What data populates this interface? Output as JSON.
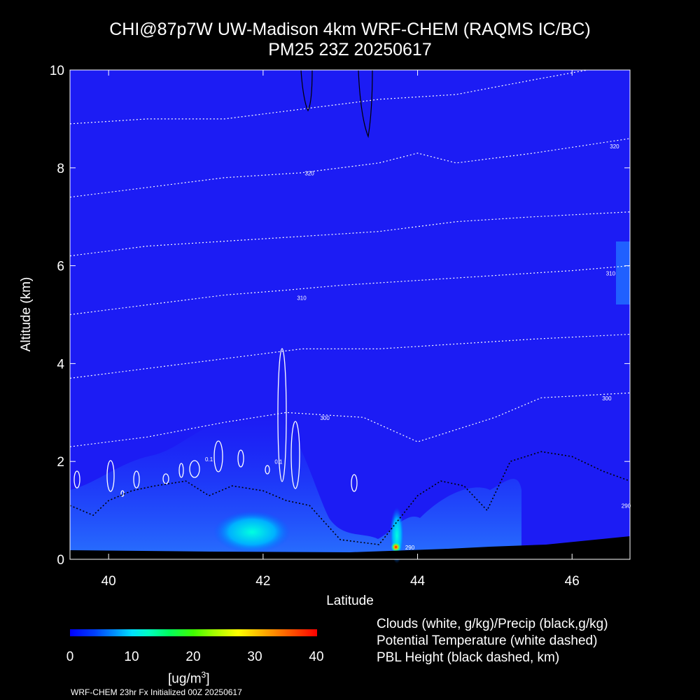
{
  "chart_data": {
    "type": "heatmap",
    "title": "CHI@87p7W UW-Madison 4km WRF-CHEM (RAQMS IC/BC)",
    "subtitle": "PM25 23Z 20250617",
    "xlabel": "Latitude",
    "ylabel": "Altitude (km)",
    "xlim": [
      39.5,
      46.75
    ],
    "ylim": [
      0,
      10
    ],
    "x_ticks": [
      "40",
      "42",
      "44",
      "46"
    ],
    "x_tick_values": [
      40,
      42,
      44,
      46
    ],
    "y_ticks": [
      "0",
      "2",
      "4",
      "6",
      "8",
      "10"
    ],
    "y_tick_values": [
      0,
      2,
      4,
      6,
      8,
      10
    ],
    "grid": false,
    "colorbar": {
      "label": "[ug/m",
      "label_sup": "3",
      "label_tail": "]",
      "ticks": [
        "0",
        "10",
        "20",
        "30",
        "40"
      ],
      "tick_values": [
        0,
        10,
        20,
        30,
        40
      ],
      "range": [
        0,
        40
      ]
    },
    "legend": [
      "Clouds (white, g/kg)/Precip (black,g/kg)",
      "Potential Temperature (white dashed)",
      "PBL Height (black dashed, km)"
    ],
    "potential_temperature_contours": [
      {
        "x": [
          39.5,
          40.5,
          41.5,
          42.3,
          43.3,
          44.0,
          45.0,
          45.6,
          46.75
        ],
        "y": [
          2.3,
          2.5,
          2.8,
          3.0,
          2.9,
          2.4,
          2.9,
          3.3,
          3.4
        ]
      },
      {
        "x": [
          39.5,
          40.5,
          41.5,
          42.5,
          43.5,
          44.5,
          45.5,
          46.75
        ],
        "y": [
          3.7,
          3.9,
          4.1,
          4.3,
          4.3,
          4.4,
          4.5,
          4.6
        ]
      },
      {
        "x": [
          39.5,
          40.5,
          41.5,
          42.3,
          43.0,
          44.0,
          45.0,
          46.0,
          46.75
        ],
        "y": [
          5.0,
          5.2,
          5.4,
          5.5,
          5.6,
          5.7,
          5.8,
          5.9,
          6.0
        ]
      },
      {
        "x": [
          39.5,
          40.5,
          41.5,
          42.5,
          43.5,
          44.5,
          45.5,
          46.75
        ],
        "y": [
          6.2,
          6.4,
          6.5,
          6.6,
          6.7,
          6.9,
          7.0,
          7.1
        ]
      },
      {
        "x": [
          39.5,
          40.5,
          41.5,
          42.5,
          43.5,
          44.0,
          44.5,
          45.5,
          46.75
        ],
        "y": [
          7.4,
          7.6,
          7.8,
          7.9,
          8.1,
          8.3,
          8.1,
          8.3,
          8.6
        ]
      },
      {
        "x": [
          39.5,
          40.5,
          41.5,
          42.5,
          43.5,
          44.5,
          45.5,
          46.2
        ],
        "y": [
          8.9,
          9.0,
          9.0,
          9.2,
          9.4,
          9.5,
          9.8,
          10.0
        ]
      }
    ],
    "contour_labels": [
      {
        "text": "320",
        "x": 42.6,
        "y": 7.85
      },
      {
        "text": "320",
        "x": 46.55,
        "y": 8.4
      },
      {
        "text": "310",
        "x": 42.5,
        "y": 5.3
      },
      {
        "text": "310",
        "x": 46.5,
        "y": 5.8
      },
      {
        "text": "300",
        "x": 42.8,
        "y": 2.85
      },
      {
        "text": "300",
        "x": 46.45,
        "y": 3.25
      },
      {
        "text": "290",
        "x": 43.9,
        "y": 0.2
      },
      {
        "text": "290",
        "x": 46.7,
        "y": 1.05
      },
      {
        "text": "0.1",
        "x": 41.3,
        "y": 2.0
      },
      {
        "text": "0.1",
        "x": 42.2,
        "y": 1.95
      }
    ],
    "pm25_hotspot": {
      "x": 43.72,
      "y": 0.25,
      "value": 40
    },
    "pbl_height": {
      "x": [
        39.5,
        39.8,
        40.0,
        40.3,
        40.6,
        41.0,
        41.3,
        41.6,
        42.0,
        42.3,
        42.6,
        43.0,
        43.5,
        44.0,
        44.3,
        44.6,
        44.9,
        45.2,
        45.6,
        46.0,
        46.4,
        46.75
      ],
      "y": [
        1.1,
        0.9,
        1.2,
        1.4,
        1.5,
        1.6,
        1.3,
        1.5,
        1.4,
        1.2,
        1.1,
        0.4,
        0.3,
        1.3,
        1.6,
        1.5,
        1.0,
        2.0,
        2.2,
        2.1,
        1.8,
        1.6
      ]
    }
  }
}
